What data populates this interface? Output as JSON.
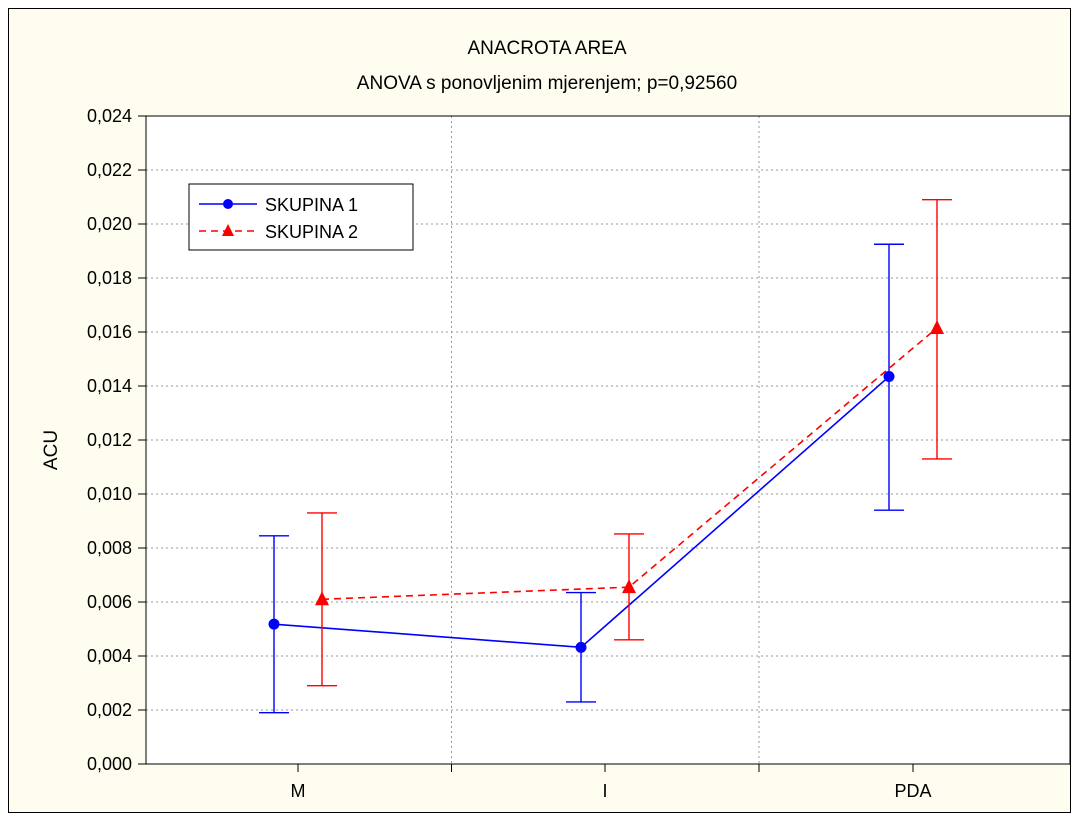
{
  "chart_data": {
    "type": "line",
    "title": "ANACROTA AREA",
    "subtitle": "ANOVA s ponovljenim mjerenjem;   p=0,92560",
    "ylabel": "ACU",
    "xlabel": "",
    "categories": [
      "M",
      "I",
      "PDA"
    ],
    "ylim": [
      0,
      0.024
    ],
    "yticks": [
      0.0,
      0.002,
      0.004,
      0.006,
      0.008,
      0.01,
      0.012,
      0.014,
      0.016,
      0.018,
      0.02,
      0.022,
      0.024
    ],
    "ytick_labels": [
      "0,000",
      "0,002",
      "0,004",
      "0,006",
      "0,008",
      "0,010",
      "0,012",
      "0,014",
      "0,016",
      "0,018",
      "0,020",
      "0,022",
      "0,024"
    ],
    "grid": true,
    "legend_position": "top-left",
    "series": [
      {
        "name": "SKUPINA 1",
        "color": "#0000ff",
        "marker": "circle",
        "line_style": "solid",
        "values": [
          0.00518,
          0.00432,
          0.01435
        ],
        "lower": [
          0.0019,
          0.0023,
          0.0094
        ],
        "upper": [
          0.00845,
          0.00635,
          0.01925
        ]
      },
      {
        "name": "SKUPINA 2",
        "color": "#ff0000",
        "marker": "triangle",
        "line_style": "dashed",
        "values": [
          0.0061,
          0.00655,
          0.01615
        ],
        "lower": [
          0.0029,
          0.0046,
          0.0113
        ],
        "upper": [
          0.0093,
          0.00852,
          0.0209
        ]
      }
    ]
  }
}
